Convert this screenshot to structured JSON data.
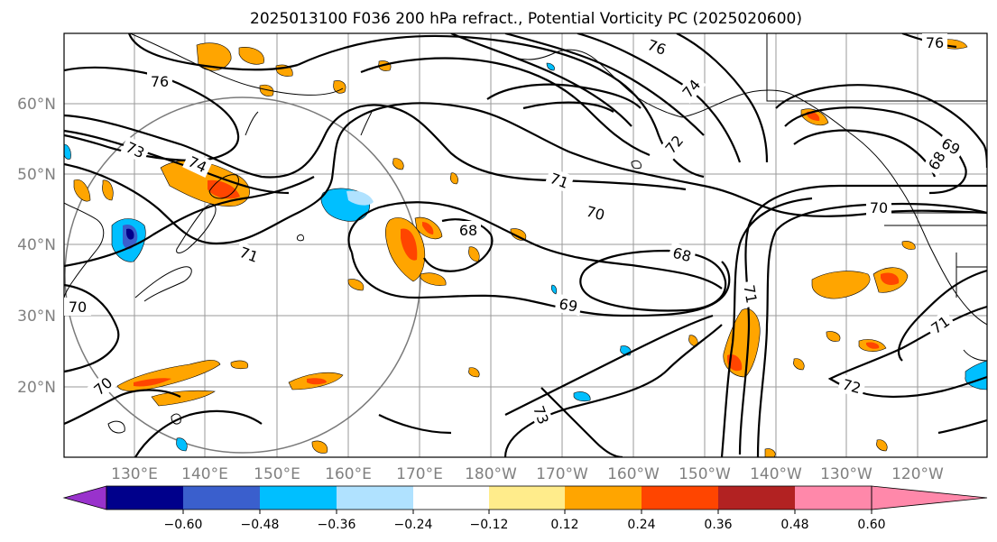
{
  "title": "2025013100 F036 200 hPa refract., Potential Vorticity PC (2025020600)",
  "lat_labels": [
    "60°N",
    "50°N",
    "40°N",
    "30°N",
    "20°N"
  ],
  "lon_labels": [
    "130°E",
    "140°E",
    "150°E",
    "160°E",
    "170°E",
    "180°W",
    "170°W",
    "160°W",
    "150°W",
    "140°W",
    "130°W",
    "120°W"
  ],
  "contour_labels": [
    "76",
    "73",
    "74",
    "71",
    "71",
    "70",
    "68",
    "68",
    "72",
    "69",
    "74",
    "76",
    "76",
    "72",
    "70",
    "69",
    "70",
    "70",
    "73",
    "71",
    "68",
    "71"
  ],
  "colorbar": {
    "ticks": [
      "−0.60",
      "−0.48",
      "−0.36",
      "−0.24",
      "−0.12",
      "0.12",
      "0.24",
      "0.36",
      "0.48",
      "0.60"
    ],
    "colors": [
      "#9932cc",
      "#00008b",
      "#3a5fcd",
      "#00bfff",
      "#b0e2ff",
      "#ffffff",
      "#ffec8b",
      "#ffa500",
      "#ff4500",
      "#b22222",
      "#ff88aa"
    ]
  },
  "legend_colors": {
    "strong_positive": "#ff4500",
    "positive": "#ffa500",
    "weak_positive": "#ffec8b",
    "negative": "#00bfff",
    "strong_negative": "#3a5fcd"
  }
}
